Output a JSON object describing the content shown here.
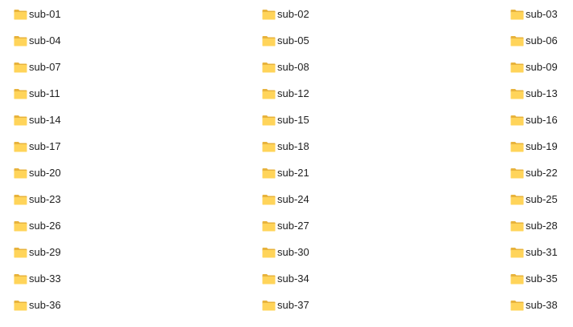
{
  "folders": [
    {
      "name": "sub-01"
    },
    {
      "name": "sub-02"
    },
    {
      "name": "sub-03"
    },
    {
      "name": "sub-04"
    },
    {
      "name": "sub-05"
    },
    {
      "name": "sub-06"
    },
    {
      "name": "sub-07"
    },
    {
      "name": "sub-08"
    },
    {
      "name": "sub-09"
    },
    {
      "name": "sub-11"
    },
    {
      "name": "sub-12"
    },
    {
      "name": "sub-13"
    },
    {
      "name": "sub-14"
    },
    {
      "name": "sub-15"
    },
    {
      "name": "sub-16"
    },
    {
      "name": "sub-17"
    },
    {
      "name": "sub-18"
    },
    {
      "name": "sub-19"
    },
    {
      "name": "sub-20"
    },
    {
      "name": "sub-21"
    },
    {
      "name": "sub-22"
    },
    {
      "name": "sub-23"
    },
    {
      "name": "sub-24"
    },
    {
      "name": "sub-25"
    },
    {
      "name": "sub-26"
    },
    {
      "name": "sub-27"
    },
    {
      "name": "sub-28"
    },
    {
      "name": "sub-29"
    },
    {
      "name": "sub-30"
    },
    {
      "name": "sub-31"
    },
    {
      "name": "sub-33"
    },
    {
      "name": "sub-34"
    },
    {
      "name": "sub-35"
    },
    {
      "name": "sub-36"
    },
    {
      "name": "sub-37"
    },
    {
      "name": "sub-38"
    }
  ],
  "icon": {
    "name": "folder-icon",
    "color_back": "#e8b33c",
    "color_front": "#ffd45a"
  }
}
